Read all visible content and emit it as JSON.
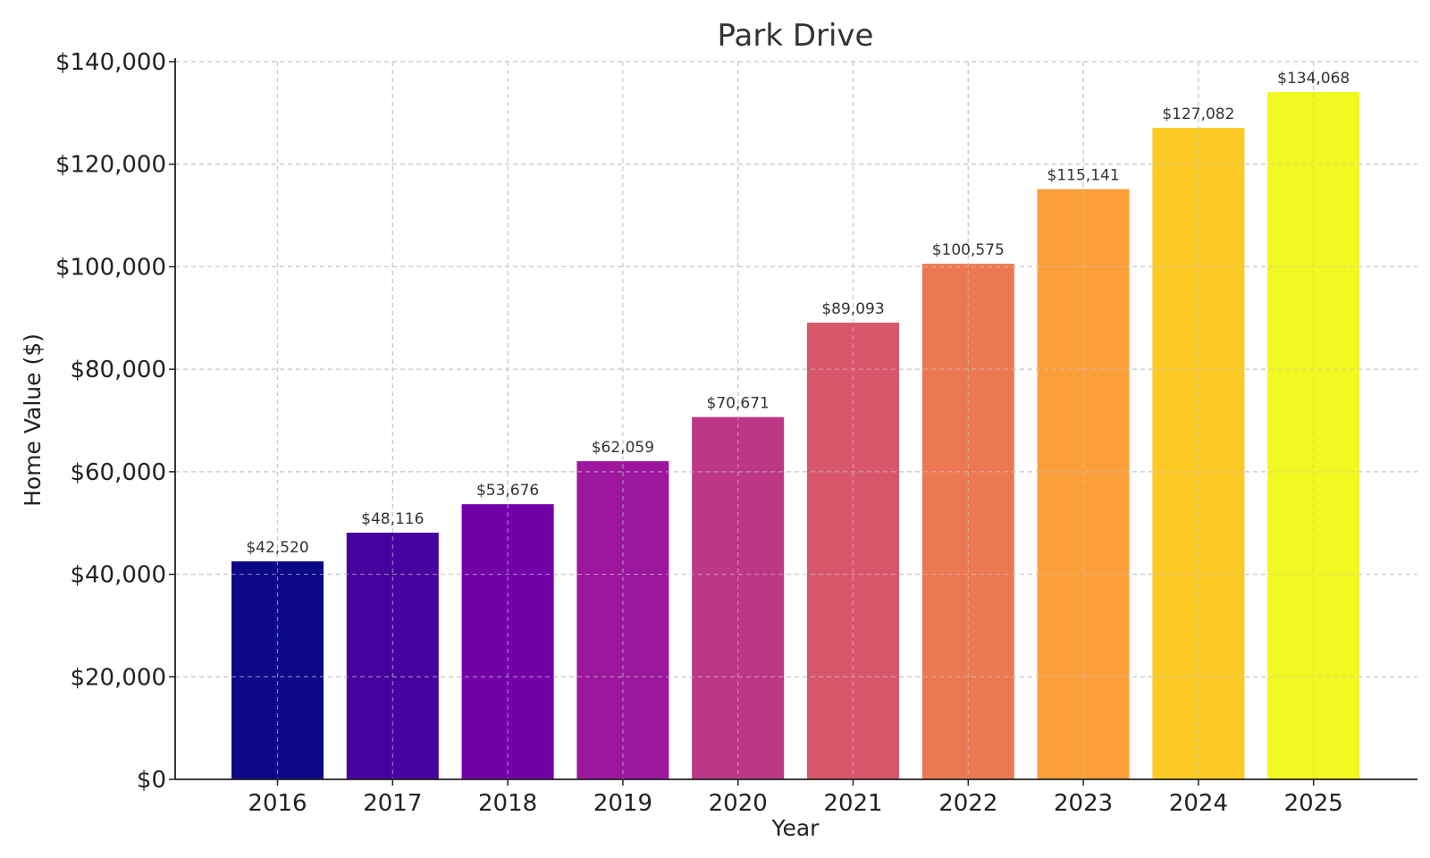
{
  "chart_data": {
    "type": "bar",
    "title": "Park Drive",
    "xlabel": "Year",
    "ylabel": "Home Value ($)",
    "categories": [
      "2016",
      "2017",
      "2018",
      "2019",
      "2020",
      "2021",
      "2022",
      "2023",
      "2024",
      "2025"
    ],
    "values": [
      42520,
      48116,
      53676,
      62059,
      70671,
      89093,
      100575,
      115141,
      127082,
      134068
    ],
    "data_labels": [
      "$42,520",
      "$48,116",
      "$53,676",
      "$62,059",
      "$70,671",
      "$89,093",
      "$100,575",
      "$115,141",
      "$127,082",
      "$134,068"
    ],
    "ylim": [
      0,
      140000
    ],
    "yticks": [
      0,
      20000,
      40000,
      60000,
      80000,
      100000,
      120000,
      140000
    ],
    "ytick_labels": [
      "$0",
      "$20,000",
      "$40,000",
      "$60,000",
      "$80,000",
      "$100,000",
      "$120,000",
      "$140,000"
    ],
    "grid": true,
    "colors": [
      "#0d0887",
      "#46039f",
      "#7201a8",
      "#9c179e",
      "#bd3786",
      "#d8576b",
      "#ed7953",
      "#fb9f3a",
      "#fdca26",
      "#f0f921"
    ]
  }
}
